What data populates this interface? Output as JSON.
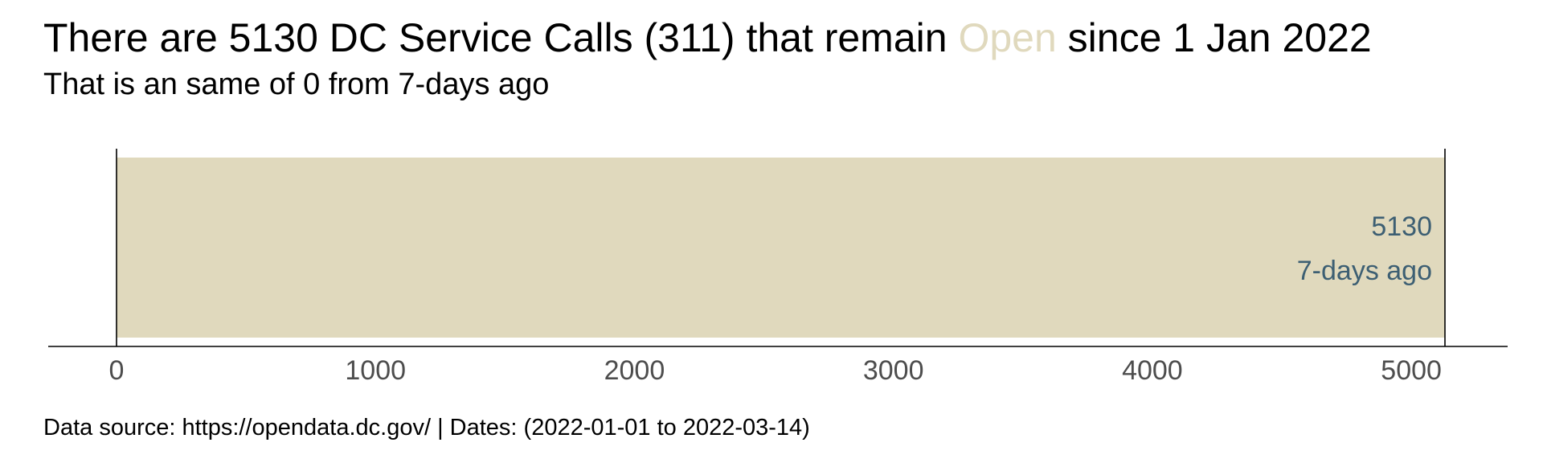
{
  "title": {
    "prefix": "There are 5130 DC Service Calls (311) that remain ",
    "highlight": "Open",
    "suffix": " since 1 Jan 2022"
  },
  "subtitle": "That is an same of 0 from 7-days ago",
  "caption": "Data source: https://opendata.dc.gov/ | Dates: (2022-01-01 to 2022-03-14)",
  "colors": {
    "bar": "#e0d9bd",
    "label": "#3d5f73",
    "highlight": "#e0d9bd",
    "axis_text": "#4d4d4d"
  },
  "chart_data": {
    "type": "bar",
    "orientation": "horizontal",
    "values": [
      5130
    ],
    "reference_value": 5130,
    "bar_labels": [
      "5130",
      "7-days ago"
    ],
    "xlim": [
      0,
      5130
    ],
    "xticks": [
      0,
      1000,
      2000,
      3000,
      4000,
      5000
    ],
    "grid": false
  }
}
